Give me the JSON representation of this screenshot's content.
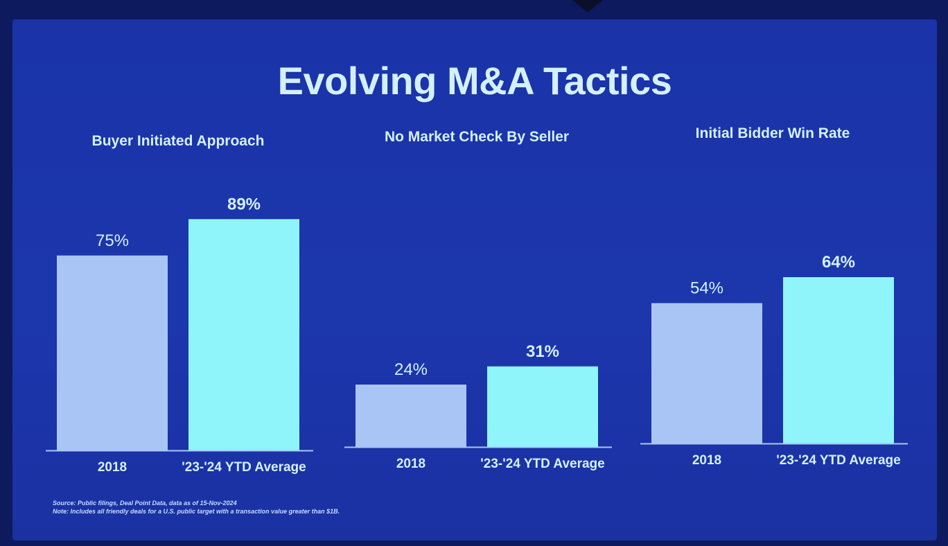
{
  "title": "Evolving M&A Tactics",
  "colors": {
    "background": "#1a33a8",
    "bar_2018": "#a9c5f5",
    "bar_recent": "#8ff5fb",
    "text": "#d4f0ff",
    "baseline": "#a8c8f8"
  },
  "chart_data": [
    {
      "type": "bar",
      "title": "Buyer Initiated Approach",
      "categories": [
        "2018",
        "'23-'24 YTD Average"
      ],
      "values": [
        75,
        89
      ],
      "value_labels": [
        "75%",
        "89%"
      ],
      "unit": "%"
    },
    {
      "type": "bar",
      "title": "No Market Check By Seller",
      "categories": [
        "2018",
        "'23-'24 YTD Average"
      ],
      "values": [
        24,
        31
      ],
      "value_labels": [
        "24%",
        "31%"
      ],
      "unit": "%"
    },
    {
      "type": "bar",
      "title": "Initial Bidder Win Rate",
      "categories": [
        "2018",
        "'23-'24 YTD Average"
      ],
      "values": [
        54,
        64
      ],
      "value_labels": [
        "54%",
        "64%"
      ],
      "unit": "%"
    }
  ],
  "footnotes": {
    "source": "Source: Public filings, Deal Point Data, data as of 15-Nov-2024",
    "note": "Note: Includes all friendly deals for a U.S. public target with a transaction value greater than $1B."
  }
}
